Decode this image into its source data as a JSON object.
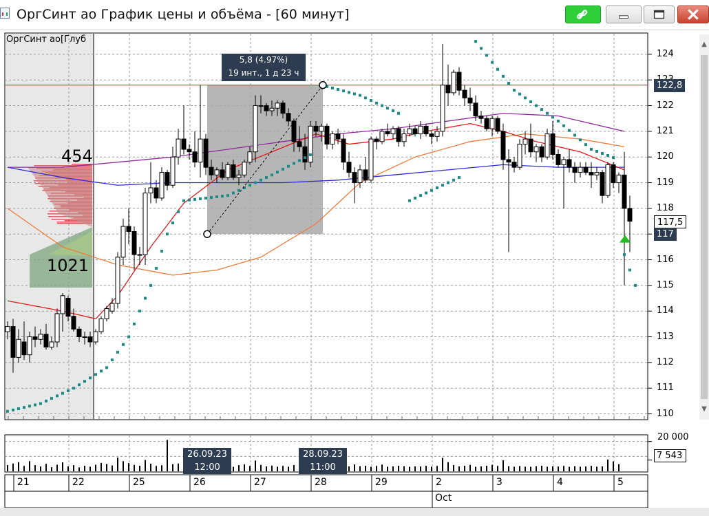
{
  "window": {
    "title": "ОргСинт ао График цены и объёма - [60 минут]",
    "buttons": {
      "link": "link-icon",
      "minimize": "minimize-icon",
      "maximize": "maximize-icon",
      "close": "close-icon"
    }
  },
  "chart_data": {
    "type": "candlestick",
    "legend_text": "ОргСинт ао[Глуб",
    "y_ticks": [
      "124",
      "123",
      "122",
      "121",
      "120",
      "119",
      "118",
      "117",
      "116",
      "115",
      "114",
      "113",
      "112",
      "111",
      "110"
    ],
    "ylim": [
      109.8,
      124.8
    ],
    "x_labels": [
      "21",
      "22",
      "25",
      "26",
      "27",
      "28",
      "29",
      "2",
      "3",
      "4",
      "5"
    ],
    "month_label": "Oct",
    "price_boxes": {
      "horizontal_level": "122,8",
      "last_price": "117",
      "hover_price": "117,5"
    },
    "measurement": {
      "line1": "5,8 (4.97%)",
      "line2": "19 инт., 1 д 23 ч",
      "from_price": 117.0,
      "to_price": 122.8
    },
    "horizontal_line": 122.8,
    "volume_profile": {
      "upper_count": "454",
      "lower_count": "1021"
    },
    "candles": [
      {
        "o": 113.2,
        "h": 113.6,
        "l": 112.9,
        "c": 113.4
      },
      {
        "o": 113.4,
        "h": 113.7,
        "l": 111.6,
        "c": 112.2
      },
      {
        "o": 112.2,
        "h": 113.3,
        "l": 112.0,
        "c": 112.9
      },
      {
        "o": 112.8,
        "h": 113.6,
        "l": 112.1,
        "c": 112.3
      },
      {
        "o": 112.3,
        "h": 113.2,
        "l": 112.0,
        "c": 113.0
      },
      {
        "o": 113.0,
        "h": 113.4,
        "l": 112.6,
        "c": 112.9
      },
      {
        "o": 112.9,
        "h": 113.3,
        "l": 112.7,
        "c": 113.1
      },
      {
        "o": 113.1,
        "h": 113.5,
        "l": 112.5,
        "c": 112.6
      },
      {
        "o": 112.6,
        "h": 113.0,
        "l": 112.5,
        "c": 112.8
      },
      {
        "o": 112.8,
        "h": 114.1,
        "l": 112.6,
        "c": 113.9
      },
      {
        "o": 113.9,
        "h": 114.7,
        "l": 113.2,
        "c": 114.6
      },
      {
        "o": 114.5,
        "h": 114.6,
        "l": 113.6,
        "c": 113.8
      },
      {
        "o": 113.8,
        "h": 114.1,
        "l": 113.2,
        "c": 113.3
      },
      {
        "o": 113.3,
        "h": 113.4,
        "l": 112.8,
        "c": 113.0
      },
      {
        "o": 113.0,
        "h": 113.2,
        "l": 112.7,
        "c": 113.0
      },
      {
        "o": 113.0,
        "h": 113.2,
        "l": 112.6,
        "c": 112.8
      },
      {
        "o": 112.8,
        "h": 113.3,
        "l": 112.7,
        "c": 113.2
      },
      {
        "o": 113.2,
        "h": 113.8,
        "l": 113.1,
        "c": 113.7
      },
      {
        "o": 113.7,
        "h": 114.2,
        "l": 113.6,
        "c": 114.1
      },
      {
        "o": 114.0,
        "h": 114.5,
        "l": 113.9,
        "c": 114.3
      },
      {
        "o": 114.3,
        "h": 116.3,
        "l": 114.1,
        "c": 116.1
      },
      {
        "o": 116.1,
        "h": 117.6,
        "l": 115.8,
        "c": 117.3
      },
      {
        "o": 117.3,
        "h": 118.0,
        "l": 116.6,
        "c": 117.1
      },
      {
        "o": 117.1,
        "h": 117.3,
        "l": 115.6,
        "c": 116.2
      },
      {
        "o": 116.2,
        "h": 116.5,
        "l": 115.8,
        "c": 116.2
      },
      {
        "o": 116.2,
        "h": 118.8,
        "l": 115.8,
        "c": 118.6
      },
      {
        "o": 118.6,
        "h": 119.8,
        "l": 118.2,
        "c": 118.8
      },
      {
        "o": 118.8,
        "h": 119.1,
        "l": 118.2,
        "c": 118.4
      },
      {
        "o": 118.4,
        "h": 119.6,
        "l": 118.3,
        "c": 119.4
      },
      {
        "o": 119.4,
        "h": 119.5,
        "l": 118.7,
        "c": 118.9
      },
      {
        "o": 118.9,
        "h": 120.4,
        "l": 118.8,
        "c": 120.0
      },
      {
        "o": 120.0,
        "h": 121.1,
        "l": 119.7,
        "c": 120.7
      },
      {
        "o": 120.7,
        "h": 122.0,
        "l": 120.1,
        "c": 120.3
      },
      {
        "o": 120.3,
        "h": 120.5,
        "l": 119.9,
        "c": 120.2
      },
      {
        "o": 120.2,
        "h": 121.0,
        "l": 119.6,
        "c": 119.8
      },
      {
        "o": 119.8,
        "h": 122.8,
        "l": 119.2,
        "c": 120.7
      },
      {
        "o": 120.7,
        "h": 120.9,
        "l": 119.3,
        "c": 119.6
      },
      {
        "o": 119.6,
        "h": 119.9,
        "l": 119.1,
        "c": 119.3
      },
      {
        "o": 119.3,
        "h": 119.6,
        "l": 119.0,
        "c": 119.5
      },
      {
        "o": 119.5,
        "h": 119.8,
        "l": 119.1,
        "c": 119.2
      },
      {
        "o": 119.2,
        "h": 119.8,
        "l": 119.1,
        "c": 119.7
      },
      {
        "o": 119.7,
        "h": 119.9,
        "l": 119.1,
        "c": 119.2
      },
      {
        "o": 119.2,
        "h": 119.5,
        "l": 118.9,
        "c": 119.3
      },
      {
        "o": 119.3,
        "h": 119.9,
        "l": 119.2,
        "c": 119.8
      },
      {
        "o": 119.8,
        "h": 120.4,
        "l": 119.7,
        "c": 120.2
      },
      {
        "o": 120.2,
        "h": 122.4,
        "l": 119.8,
        "c": 122.0
      },
      {
        "o": 122.0,
        "h": 122.4,
        "l": 121.7,
        "c": 122.0
      },
      {
        "o": 122.0,
        "h": 122.1,
        "l": 121.6,
        "c": 121.8
      },
      {
        "o": 121.8,
        "h": 122.2,
        "l": 121.6,
        "c": 121.9
      },
      {
        "o": 121.9,
        "h": 122.2,
        "l": 121.6,
        "c": 122.1
      },
      {
        "o": 122.1,
        "h": 122.2,
        "l": 121.5,
        "c": 121.7
      },
      {
        "o": 121.7,
        "h": 121.9,
        "l": 121.2,
        "c": 121.4
      },
      {
        "o": 121.4,
        "h": 121.5,
        "l": 120.2,
        "c": 120.6
      },
      {
        "o": 120.6,
        "h": 121.2,
        "l": 120.2,
        "c": 120.4
      },
      {
        "o": 120.4,
        "h": 120.9,
        "l": 119.5,
        "c": 119.8
      },
      {
        "o": 119.8,
        "h": 121.4,
        "l": 119.6,
        "c": 121.2
      },
      {
        "o": 121.2,
        "h": 121.4,
        "l": 120.8,
        "c": 121.0
      },
      {
        "o": 121.0,
        "h": 121.3,
        "l": 120.6,
        "c": 121.2
      },
      {
        "o": 121.2,
        "h": 121.3,
        "l": 120.3,
        "c": 120.5
      },
      {
        "o": 120.5,
        "h": 121.0,
        "l": 120.3,
        "c": 120.9
      },
      {
        "o": 120.9,
        "h": 121.1,
        "l": 120.5,
        "c": 120.7
      },
      {
        "o": 120.7,
        "h": 120.9,
        "l": 119.5,
        "c": 119.8
      },
      {
        "o": 119.8,
        "h": 120.2,
        "l": 119.2,
        "c": 119.4
      },
      {
        "o": 119.4,
        "h": 119.6,
        "l": 118.2,
        "c": 119.0
      },
      {
        "o": 119.0,
        "h": 119.7,
        "l": 118.8,
        "c": 119.5
      },
      {
        "o": 119.5,
        "h": 120.0,
        "l": 119.0,
        "c": 119.1
      },
      {
        "o": 119.1,
        "h": 120.8,
        "l": 119.0,
        "c": 120.7
      },
      {
        "o": 120.7,
        "h": 120.8,
        "l": 120.3,
        "c": 120.6
      },
      {
        "o": 120.6,
        "h": 121.1,
        "l": 120.5,
        "c": 121.0
      },
      {
        "o": 121.0,
        "h": 121.3,
        "l": 120.8,
        "c": 120.9
      },
      {
        "o": 120.9,
        "h": 121.2,
        "l": 120.7,
        "c": 121.1
      },
      {
        "o": 121.1,
        "h": 121.2,
        "l": 120.4,
        "c": 120.6
      },
      {
        "o": 120.6,
        "h": 121.1,
        "l": 120.4,
        "c": 120.9
      },
      {
        "o": 120.9,
        "h": 121.3,
        "l": 120.8,
        "c": 121.1
      },
      {
        "o": 121.1,
        "h": 121.2,
        "l": 120.8,
        "c": 120.9
      },
      {
        "o": 120.9,
        "h": 121.4,
        "l": 120.7,
        "c": 121.2
      },
      {
        "o": 121.2,
        "h": 121.3,
        "l": 120.8,
        "c": 120.9
      },
      {
        "o": 120.9,
        "h": 121.0,
        "l": 120.5,
        "c": 120.8
      },
      {
        "o": 120.8,
        "h": 121.2,
        "l": 120.6,
        "c": 121.0
      },
      {
        "o": 121.0,
        "h": 124.4,
        "l": 120.8,
        "c": 122.8
      },
      {
        "o": 122.8,
        "h": 123.6,
        "l": 122.0,
        "c": 122.5
      },
      {
        "o": 122.5,
        "h": 123.4,
        "l": 122.4,
        "c": 123.3
      },
      {
        "o": 123.3,
        "h": 123.5,
        "l": 122.4,
        "c": 122.6
      },
      {
        "o": 122.6,
        "h": 122.8,
        "l": 122.0,
        "c": 122.3
      },
      {
        "o": 122.3,
        "h": 122.7,
        "l": 121.8,
        "c": 122.1
      },
      {
        "o": 122.1,
        "h": 122.4,
        "l": 121.4,
        "c": 121.6
      },
      {
        "o": 121.6,
        "h": 121.8,
        "l": 121.3,
        "c": 121.5
      },
      {
        "o": 121.5,
        "h": 121.6,
        "l": 121.0,
        "c": 121.1
      },
      {
        "o": 121.1,
        "h": 121.6,
        "l": 120.8,
        "c": 121.5
      },
      {
        "o": 121.5,
        "h": 121.6,
        "l": 120.9,
        "c": 121.0
      },
      {
        "o": 121.0,
        "h": 121.3,
        "l": 119.5,
        "c": 119.9
      },
      {
        "o": 119.9,
        "h": 120.3,
        "l": 116.3,
        "c": 119.8
      },
      {
        "o": 119.8,
        "h": 120.0,
        "l": 119.4,
        "c": 119.6
      },
      {
        "o": 119.6,
        "h": 120.7,
        "l": 119.5,
        "c": 120.5
      },
      {
        "o": 120.5,
        "h": 121.0,
        "l": 120.1,
        "c": 120.7
      },
      {
        "o": 120.7,
        "h": 121.3,
        "l": 120.0,
        "c": 120.2
      },
      {
        "o": 120.2,
        "h": 120.5,
        "l": 119.8,
        "c": 120.4
      },
      {
        "o": 120.4,
        "h": 120.5,
        "l": 119.8,
        "c": 120.0
      },
      {
        "o": 120.0,
        "h": 121.1,
        "l": 119.9,
        "c": 120.9
      },
      {
        "o": 120.9,
        "h": 121.4,
        "l": 119.9,
        "c": 120.1
      },
      {
        "o": 120.1,
        "h": 120.3,
        "l": 119.6,
        "c": 119.7
      },
      {
        "o": 119.7,
        "h": 120.0,
        "l": 118.0,
        "c": 119.9
      },
      {
        "o": 119.9,
        "h": 120.3,
        "l": 119.4,
        "c": 119.6
      },
      {
        "o": 119.6,
        "h": 119.8,
        "l": 119.0,
        "c": 119.4
      },
      {
        "o": 119.4,
        "h": 119.8,
        "l": 119.2,
        "c": 119.6
      },
      {
        "o": 119.6,
        "h": 119.8,
        "l": 119.3,
        "c": 119.4
      },
      {
        "o": 119.4,
        "h": 119.8,
        "l": 118.8,
        "c": 119.3
      },
      {
        "o": 119.3,
        "h": 119.6,
        "l": 119.1,
        "c": 119.4
      },
      {
        "o": 119.4,
        "h": 119.5,
        "l": 118.2,
        "c": 118.5
      },
      {
        "o": 118.5,
        "h": 119.8,
        "l": 118.4,
        "c": 119.7
      },
      {
        "o": 119.7,
        "h": 119.8,
        "l": 118.8,
        "c": 119.0
      },
      {
        "o": 119.0,
        "h": 119.4,
        "l": 118.6,
        "c": 119.3
      },
      {
        "o": 119.3,
        "h": 120.2,
        "l": 115.0,
        "c": 118.0
      },
      {
        "o": 118.0,
        "h": 118.5,
        "l": 116.3,
        "c": 117.5
      }
    ],
    "sar": [
      {
        "x": 0,
        "y": 110.1
      },
      {
        "x": 6,
        "y": 110.4
      },
      {
        "x": 12,
        "y": 111.0
      },
      {
        "x": 18,
        "y": 111.8
      },
      {
        "x": 22,
        "y": 113.0
      },
      {
        "x": 26,
        "y": 115.0
      },
      {
        "x": 29,
        "y": 117.0
      },
      {
        "x": 32,
        "y": 118.3
      },
      {
        "x": 40,
        "y": 118.5
      },
      {
        "x": 48,
        "y": 119.3
      },
      {
        "x": 56,
        "y": 120.2
      },
      {
        "x": 57,
        "y": 122.8
      },
      {
        "x": 64,
        "y": 122.4
      },
      {
        "x": 72,
        "y": 121.6
      },
      {
        "x": 73,
        "y": 118.3
      },
      {
        "x": 83,
        "y": 119.3
      },
      {
        "x": 85,
        "y": 124.5
      },
      {
        "x": 92,
        "y": 122.6
      },
      {
        "x": 100,
        "y": 121.4
      },
      {
        "x": 106,
        "y": 120.3
      },
      {
        "x": 111,
        "y": 119.9
      },
      {
        "x": 112,
        "y": 116.2
      },
      {
        "x": 114,
        "y": 115.0
      }
    ],
    "ma_fast": [
      {
        "x": 0,
        "y": 114.4
      },
      {
        "x": 10,
        "y": 114.0
      },
      {
        "x": 16,
        "y": 113.7
      },
      {
        "x": 20,
        "y": 114.6
      },
      {
        "x": 26,
        "y": 116.5
      },
      {
        "x": 32,
        "y": 118.2
      },
      {
        "x": 40,
        "y": 119.5
      },
      {
        "x": 48,
        "y": 120.2
      },
      {
        "x": 56,
        "y": 120.9
      },
      {
        "x": 62,
        "y": 120.5
      },
      {
        "x": 70,
        "y": 120.7
      },
      {
        "x": 76,
        "y": 121.0
      },
      {
        "x": 84,
        "y": 121.3
      },
      {
        "x": 90,
        "y": 121.0
      },
      {
        "x": 96,
        "y": 120.6
      },
      {
        "x": 104,
        "y": 120.2
      },
      {
        "x": 112,
        "y": 119.5
      }
    ],
    "ma_mid": [
      {
        "x": 0,
        "y": 118.0
      },
      {
        "x": 10,
        "y": 116.5
      },
      {
        "x": 20,
        "y": 115.8
      },
      {
        "x": 30,
        "y": 115.4
      },
      {
        "x": 38,
        "y": 115.6
      },
      {
        "x": 46,
        "y": 116.1
      },
      {
        "x": 56,
        "y": 117.4
      },
      {
        "x": 64,
        "y": 119.0
      },
      {
        "x": 74,
        "y": 120.0
      },
      {
        "x": 84,
        "y": 120.6
      },
      {
        "x": 94,
        "y": 120.9
      },
      {
        "x": 104,
        "y": 120.7
      },
      {
        "x": 112,
        "y": 120.4
      }
    ],
    "ma_slow_blue": [
      {
        "x": 0,
        "y": 119.6
      },
      {
        "x": 10,
        "y": 119.2
      },
      {
        "x": 20,
        "y": 118.9
      },
      {
        "x": 30,
        "y": 119.0
      },
      {
        "x": 40,
        "y": 119.0
      },
      {
        "x": 50,
        "y": 119.0
      },
      {
        "x": 60,
        "y": 119.1
      },
      {
        "x": 70,
        "y": 119.3
      },
      {
        "x": 80,
        "y": 119.5
      },
      {
        "x": 90,
        "y": 119.7
      },
      {
        "x": 100,
        "y": 119.6
      },
      {
        "x": 112,
        "y": 119.6
      }
    ],
    "ma_slow_purple": [
      {
        "x": 0,
        "y": 119.6
      },
      {
        "x": 10,
        "y": 119.6
      },
      {
        "x": 20,
        "y": 119.8
      },
      {
        "x": 30,
        "y": 120.0
      },
      {
        "x": 40,
        "y": 120.3
      },
      {
        "x": 50,
        "y": 120.6
      },
      {
        "x": 60,
        "y": 120.9
      },
      {
        "x": 70,
        "y": 121.1
      },
      {
        "x": 80,
        "y": 121.4
      },
      {
        "x": 90,
        "y": 121.7
      },
      {
        "x": 100,
        "y": 121.6
      },
      {
        "x": 112,
        "y": 121.0
      }
    ],
    "volume_ticks": {
      "max": "20 000",
      "current": "7 543"
    },
    "volume_ymax": 24000,
    "volume_dates": [
      {
        "l1": "26.09.23",
        "l2": "12:00"
      },
      {
        "l1": "28.09.23",
        "l2": "11:00"
      }
    ],
    "volumes": [
      4200,
      5200,
      6100,
      3600,
      6800,
      4100,
      3200,
      5000,
      2700,
      4400,
      6000,
      3300,
      4100,
      2600,
      3700,
      3100,
      4400,
      5600,
      4900,
      3900,
      9200,
      6800,
      5500,
      4300,
      3700,
      7600,
      5100,
      3600,
      4000,
      3700,
      4800,
      5200,
      6100,
      4500,
      3900,
      6600,
      4300,
      3800,
      3100,
      3700,
      3400,
      3000,
      4100,
      4700,
      3600,
      7200,
      4300,
      3300,
      3800,
      3100,
      3600,
      3100,
      4200,
      3300,
      3700,
      4700,
      3100,
      2900,
      3300,
      3900,
      3100,
      3600,
      3300,
      4600,
      3400,
      3700,
      3000,
      3600,
      4500,
      3100,
      3300,
      3700,
      3400,
      3000,
      3300,
      3200,
      3700,
      3100,
      3600,
      9000,
      6100,
      4200,
      3300,
      3700,
      4300,
      3000,
      3300,
      3700,
      4300,
      3600,
      7400,
      3400,
      3100,
      3500,
      3100,
      3000,
      3400,
      3700,
      3100,
      3300,
      3200,
      3600,
      3000,
      3400,
      3100,
      3200,
      3700,
      3100,
      3300,
      7900,
      6600,
      4800
    ],
    "volume_spikes": [
      {
        "x": 29,
        "v": 21000
      },
      {
        "x": 40,
        "v": 10500
      }
    ]
  }
}
